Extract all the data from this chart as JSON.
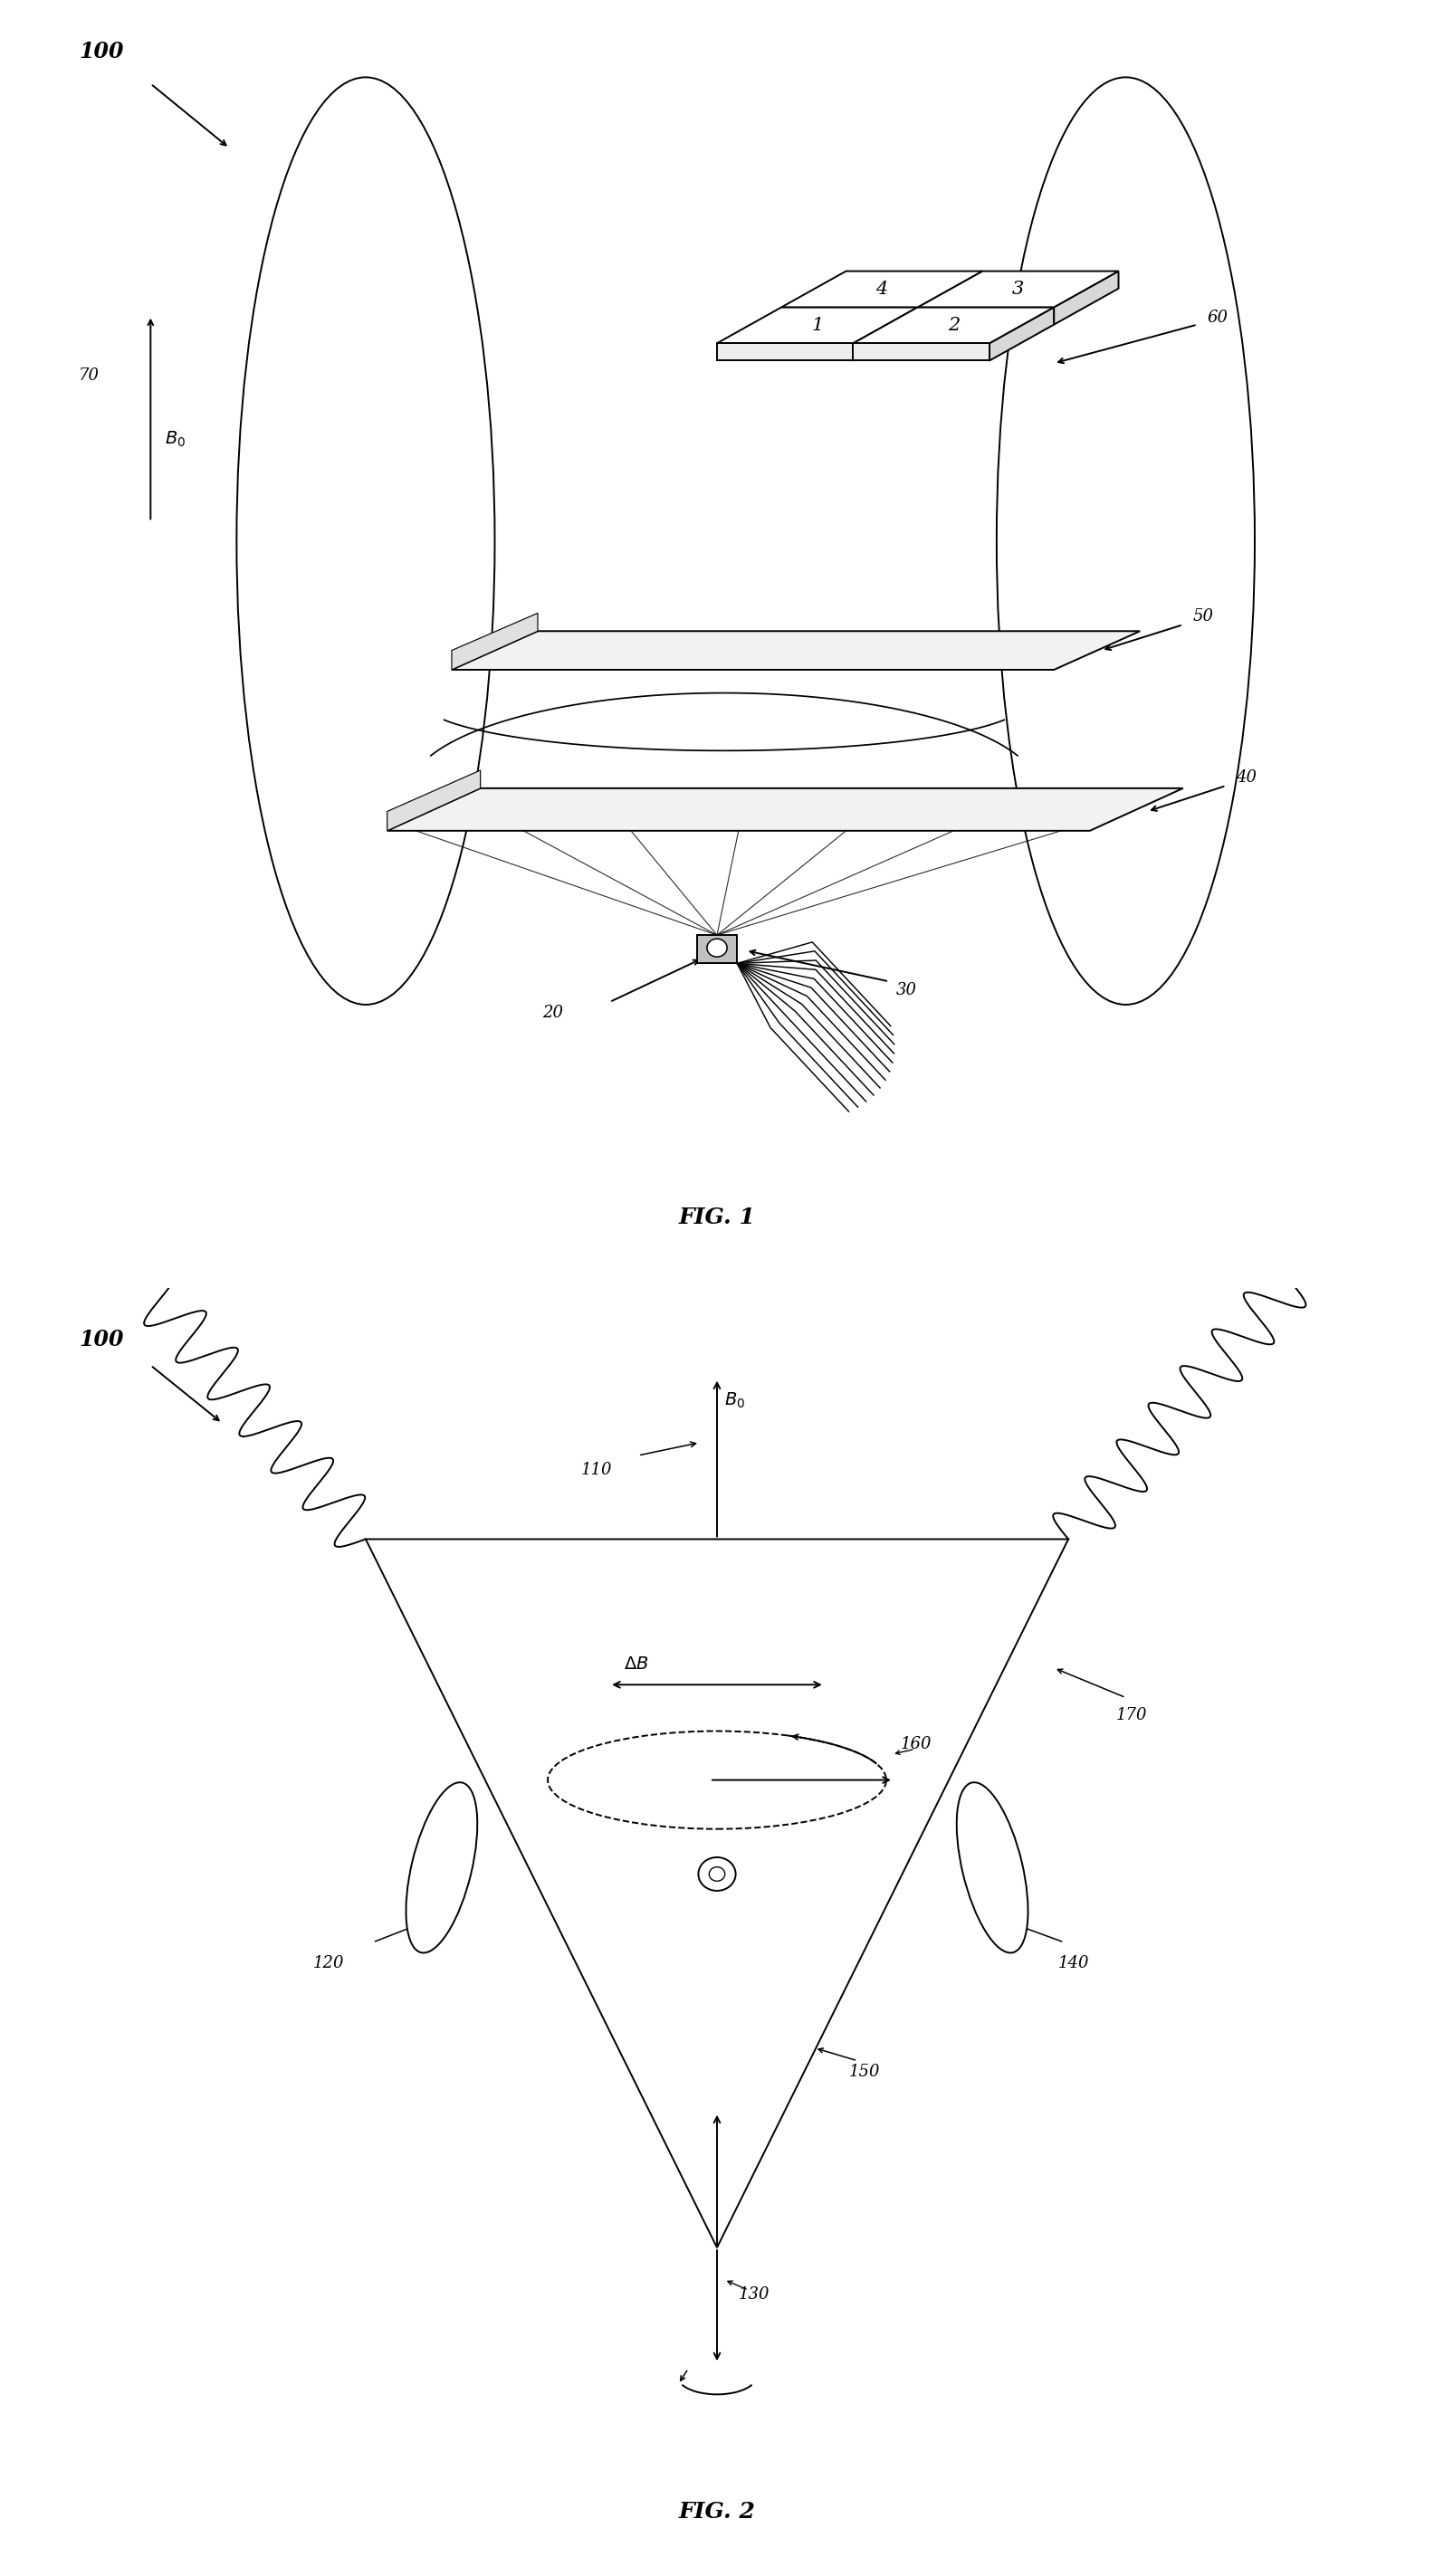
{
  "fig1": {
    "title": "FIG. 1",
    "label_100": "100",
    "label_20": "20",
    "label_30": "30",
    "label_40": "40",
    "label_50": "50",
    "label_60": "60",
    "label_70": "70",
    "label_B0": "B₀",
    "quad_labels": [
      "1",
      "2",
      "3",
      "4"
    ]
  },
  "fig2": {
    "title": "FIG. 2",
    "label_100": "100",
    "label_110": "110",
    "label_120": "120",
    "label_130": "130",
    "label_140": "140",
    "label_150": "150",
    "label_160": "160",
    "label_170": "170",
    "label_B0": "B₀",
    "label_dB": "ΔB"
  },
  "bg_color": "#ffffff",
  "line_color": "#000000",
  "font_size_label": 14,
  "font_size_title": 18,
  "font_size_number": 13
}
